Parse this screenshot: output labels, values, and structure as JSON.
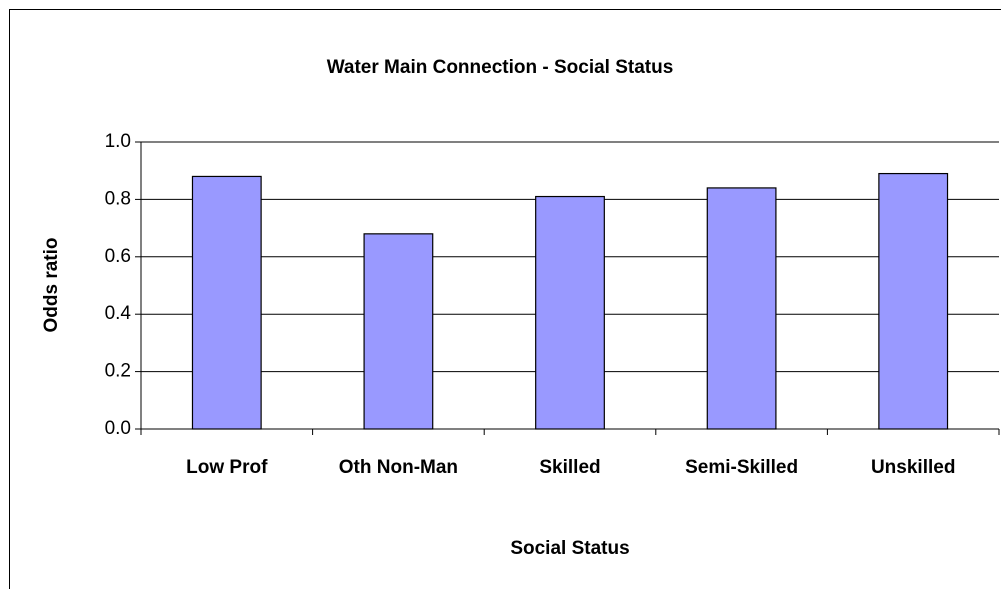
{
  "chart_data": {
    "type": "bar",
    "title": "Water Main Connection - Social Status",
    "x_label": "Social Status",
    "y_label": "Odds ratio",
    "categories": [
      "Low Prof",
      "Oth Non-Man",
      "Skilled",
      "Semi-Skilled",
      "Unskilled"
    ],
    "values": [
      0.88,
      0.68,
      0.81,
      0.84,
      0.89
    ],
    "color": "#9999ff",
    "ylim": [
      0,
      1
    ],
    "yticks": [
      {
        "value": 0,
        "label": "0.0"
      },
      {
        "value": 0.2,
        "label": "0.2"
      },
      {
        "value": 0.4,
        "label": "0.4"
      },
      {
        "value": 0.6,
        "label": "0.6"
      },
      {
        "value": 0.8,
        "label": "0.8"
      },
      {
        "value": 1,
        "label": "1.0"
      }
    ],
    "grid": true
  }
}
